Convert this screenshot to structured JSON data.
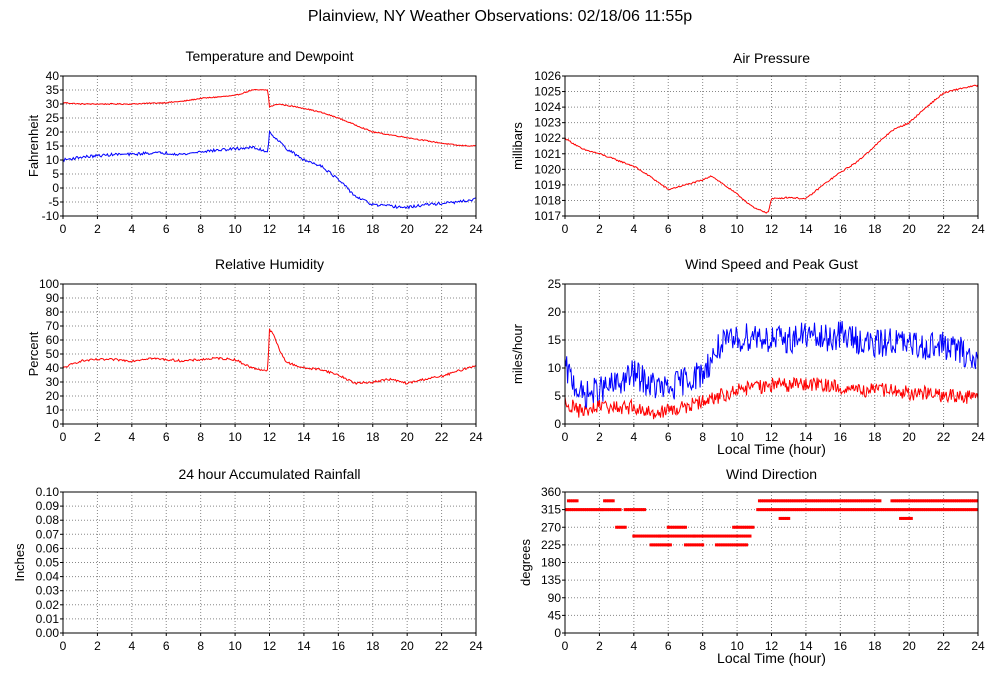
{
  "page_title": "Plainview, NY Weather Observations: 02/18/06 11:55p",
  "colors": {
    "red": "#ff0000",
    "blue": "#0000ff",
    "grid": "#888888",
    "frame": "#000000"
  },
  "chart_data": [
    {
      "id": "temp",
      "type": "line",
      "title": "Temperature and Dewpoint",
      "ylabel": "Fahrenheit",
      "xlabel": "",
      "xlim": [
        0,
        24
      ],
      "xticks": [
        0,
        2,
        4,
        6,
        8,
        10,
        12,
        14,
        16,
        18,
        20,
        22,
        24
      ],
      "ylim": [
        -10,
        40
      ],
      "yticks": [
        -10,
        -5,
        0,
        5,
        10,
        15,
        20,
        25,
        30,
        35,
        40
      ],
      "grid": true,
      "series": [
        {
          "color": "#ff0000",
          "noise": 0.2,
          "points": [
            [
              0,
              30.5
            ],
            [
              1,
              30
            ],
            [
              2,
              30
            ],
            [
              4,
              30
            ],
            [
              6,
              30.5
            ],
            [
              7,
              31
            ],
            [
              8,
              32
            ],
            [
              10,
              33
            ],
            [
              11,
              35
            ],
            [
              11.9,
              35
            ],
            [
              12,
              29
            ],
            [
              12.5,
              30
            ],
            [
              13,
              29.5
            ],
            [
              14,
              28.5
            ],
            [
              15,
              27
            ],
            [
              16,
              25
            ],
            [
              17,
              22.5
            ],
            [
              18,
              20
            ],
            [
              19,
              19
            ],
            [
              20,
              18
            ],
            [
              21,
              17
            ],
            [
              22,
              16
            ],
            [
              23,
              15.2
            ],
            [
              24,
              15
            ]
          ]
        },
        {
          "color": "#0000ff",
          "noise": 0.5,
          "points": [
            [
              0,
              10
            ],
            [
              1,
              11
            ],
            [
              2,
              11.5
            ],
            [
              3,
              12
            ],
            [
              4,
              12
            ],
            [
              5,
              12.5
            ],
            [
              6,
              12.5
            ],
            [
              7,
              12
            ],
            [
              8,
              13
            ],
            [
              9,
              13.5
            ],
            [
              10,
              14
            ],
            [
              11,
              14.5
            ],
            [
              11.9,
              13
            ],
            [
              12,
              20
            ],
            [
              12.5,
              17
            ],
            [
              13,
              14
            ],
            [
              14,
              10
            ],
            [
              15,
              8
            ],
            [
              16,
              3
            ],
            [
              16.5,
              0
            ],
            [
              17,
              -3
            ],
            [
              18,
              -6
            ],
            [
              19,
              -6.5
            ],
            [
              20,
              -7
            ],
            [
              21,
              -6
            ],
            [
              22,
              -5.5
            ],
            [
              23,
              -5
            ],
            [
              24,
              -4
            ]
          ]
        }
      ]
    },
    {
      "id": "pressure",
      "type": "line",
      "title": "Air Pressure",
      "ylabel": "millibars",
      "xlabel": "",
      "xlim": [
        0,
        24
      ],
      "xticks": [
        0,
        2,
        4,
        6,
        8,
        10,
        12,
        14,
        16,
        18,
        20,
        22,
        24
      ],
      "ylim": [
        1017,
        1026
      ],
      "yticks": [
        1017,
        1018,
        1019,
        1020,
        1021,
        1022,
        1023,
        1024,
        1025,
        1026
      ],
      "grid": true,
      "series": [
        {
          "color": "#ff0000",
          "noise": 0.05,
          "points": [
            [
              0,
              1022
            ],
            [
              1,
              1021.3
            ],
            [
              2,
              1021
            ],
            [
              3,
              1020.6
            ],
            [
              4,
              1020.2
            ],
            [
              5,
              1019.5
            ],
            [
              6,
              1018.7
            ],
            [
              7,
              1019
            ],
            [
              8,
              1019.3
            ],
            [
              8.5,
              1019.6
            ],
            [
              9,
              1019.2
            ],
            [
              10,
              1018.4
            ],
            [
              11,
              1017.5
            ],
            [
              11.8,
              1017.2
            ],
            [
              12,
              1018.1
            ],
            [
              13,
              1018.2
            ],
            [
              14,
              1018.1
            ],
            [
              15,
              1019
            ],
            [
              16,
              1019.8
            ],
            [
              17,
              1020.5
            ],
            [
              18,
              1021.5
            ],
            [
              19,
              1022.5
            ],
            [
              20,
              1023
            ],
            [
              21,
              1024
            ],
            [
              22,
              1024.9
            ],
            [
              23,
              1025.2
            ],
            [
              24,
              1025.4
            ]
          ]
        }
      ]
    },
    {
      "id": "humidity",
      "type": "line",
      "title": "Relative Humidity",
      "ylabel": "Percent",
      "xlabel": "",
      "xlim": [
        0,
        24
      ],
      "xticks": [
        0,
        2,
        4,
        6,
        8,
        10,
        12,
        14,
        16,
        18,
        20,
        22,
        24
      ],
      "ylim": [
        0,
        100
      ],
      "yticks": [
        0,
        10,
        20,
        30,
        40,
        50,
        60,
        70,
        80,
        90,
        100
      ],
      "grid": true,
      "series": [
        {
          "color": "#ff0000",
          "noise": 0.8,
          "points": [
            [
              0,
              40
            ],
            [
              1,
              45
            ],
            [
              2,
              46
            ],
            [
              3,
              46
            ],
            [
              4,
              45
            ],
            [
              5,
              47
            ],
            [
              6,
              46
            ],
            [
              7,
              45
            ],
            [
              8,
              46
            ],
            [
              9,
              47
            ],
            [
              10,
              46
            ],
            [
              11,
              40
            ],
            [
              11.9,
              38
            ],
            [
              12,
              68
            ],
            [
              12.3,
              62
            ],
            [
              12.6,
              52
            ],
            [
              13,
              44
            ],
            [
              14,
              40
            ],
            [
              15,
              39
            ],
            [
              16,
              35
            ],
            [
              17,
              29
            ],
            [
              18,
              30
            ],
            [
              19,
              32
            ],
            [
              20,
              29
            ],
            [
              21,
              32
            ],
            [
              22,
              34
            ],
            [
              23,
              38
            ],
            [
              24,
              42
            ]
          ]
        }
      ]
    },
    {
      "id": "wind",
      "type": "line",
      "title": "Wind Speed and Peak Gust",
      "ylabel": "miles/hour",
      "xlabel": "Local Time (hour)",
      "xlim": [
        0,
        24
      ],
      "xticks": [
        0,
        2,
        4,
        6,
        8,
        10,
        12,
        14,
        16,
        18,
        20,
        22,
        24
      ],
      "ylim": [
        0,
        25
      ],
      "yticks": [
        0,
        5,
        10,
        15,
        20,
        25
      ],
      "grid": true,
      "series": [
        {
          "color": "#0000ff",
          "noise": 2.6,
          "points": [
            [
              0,
              10
            ],
            [
              1,
              5
            ],
            [
              2,
              6
            ],
            [
              3,
              7
            ],
            [
              4,
              9
            ],
            [
              5,
              7
            ],
            [
              6,
              6
            ],
            [
              7,
              8
            ],
            [
              8,
              9
            ],
            [
              9,
              14
            ],
            [
              10,
              15
            ],
            [
              11,
              16
            ],
            [
              12,
              15
            ],
            [
              13,
              15
            ],
            [
              14,
              16
            ],
            [
              15,
              15
            ],
            [
              16,
              16
            ],
            [
              17,
              15
            ],
            [
              18,
              14
            ],
            [
              19,
              15
            ],
            [
              20,
              14
            ],
            [
              21,
              14
            ],
            [
              22,
              14
            ],
            [
              23,
              13
            ],
            [
              24,
              11
            ]
          ]
        },
        {
          "color": "#ff0000",
          "noise": 1.3,
          "points": [
            [
              0,
              4
            ],
            [
              1,
              2
            ],
            [
              2,
              3
            ],
            [
              3,
              3
            ],
            [
              4,
              3
            ],
            [
              5,
              2
            ],
            [
              6,
              2.5
            ],
            [
              7,
              3
            ],
            [
              8,
              4
            ],
            [
              9,
              5
            ],
            [
              10,
              6
            ],
            [
              11,
              6.5
            ],
            [
              12,
              7
            ],
            [
              13,
              7
            ],
            [
              14,
              7
            ],
            [
              15,
              7
            ],
            [
              16,
              6.5
            ],
            [
              17,
              6
            ],
            [
              18,
              6
            ],
            [
              19,
              6
            ],
            [
              20,
              5.5
            ],
            [
              21,
              5.5
            ],
            [
              22,
              5
            ],
            [
              23,
              5
            ],
            [
              24,
              4.5
            ]
          ]
        }
      ]
    },
    {
      "id": "rain",
      "type": "line",
      "title": "24 hour Accumulated Rainfall",
      "ylabel": "Inches",
      "xlabel": "",
      "xlim": [
        0,
        24
      ],
      "xticks": [
        0,
        2,
        4,
        6,
        8,
        10,
        12,
        14,
        16,
        18,
        20,
        22,
        24
      ],
      "ylim": [
        0,
        0.1
      ],
      "yticks": [
        0,
        0.01,
        0.02,
        0.03,
        0.04,
        0.05,
        0.06,
        0.07,
        0.08,
        0.09,
        0.1
      ],
      "ytick_labels": [
        "0.00",
        "0.01",
        "0.02",
        "0.03",
        "0.04",
        "0.05",
        "0.06",
        "0.07",
        "0.08",
        "0.09",
        "0.10"
      ],
      "grid": true,
      "series": [
        {
          "color": "#ff0000",
          "noise": 0,
          "points": [
            [
              0,
              0
            ],
            [
              24,
              0
            ]
          ]
        }
      ]
    },
    {
      "id": "direction",
      "type": "scatter",
      "title": "Wind Direction",
      "ylabel": "degrees",
      "xlabel": "Local Time (hour)",
      "xlim": [
        0,
        24
      ],
      "xticks": [
        0,
        2,
        4,
        6,
        8,
        10,
        12,
        14,
        16,
        18,
        20,
        22,
        24
      ],
      "ylim": [
        0,
        360
      ],
      "yticks": [
        0,
        45,
        90,
        135,
        180,
        225,
        270,
        315,
        360
      ],
      "grid": true,
      "series": [
        {
          "color": "#ff0000",
          "segments": [
            {
              "from": 0,
              "to": 2.2,
              "value": 315
            },
            {
              "from": 0.2,
              "to": 0.7,
              "value": 337.5
            },
            {
              "from": 2.2,
              "to": 3.2,
              "value": 315
            },
            {
              "from": 2.3,
              "to": 2.8,
              "value": 337.5
            },
            {
              "from": 3.0,
              "to": 3.5,
              "value": 270
            },
            {
              "from": 3.5,
              "to": 4.7,
              "value": 315
            },
            {
              "from": 4.0,
              "to": 5.5,
              "value": 247.5
            },
            {
              "from": 5.0,
              "to": 6.2,
              "value": 225
            },
            {
              "from": 5.5,
              "to": 7.5,
              "value": 247.5
            },
            {
              "from": 6.0,
              "to": 7.0,
              "value": 270
            },
            {
              "from": 7.0,
              "to": 8.0,
              "value": 225
            },
            {
              "from": 7.5,
              "to": 10.8,
              "value": 247.5
            },
            {
              "from": 8.8,
              "to": 10.6,
              "value": 225
            },
            {
              "from": 9.8,
              "to": 11.0,
              "value": 270
            },
            {
              "from": 11.2,
              "to": 24,
              "value": 315
            },
            {
              "from": 11.3,
              "to": 18.3,
              "value": 337.5
            },
            {
              "from": 19.0,
              "to": 24,
              "value": 337.5
            },
            {
              "from": 12.5,
              "to": 13.0,
              "value": 292.5
            },
            {
              "from": 19.5,
              "to": 20.2,
              "value": 292.5
            }
          ]
        }
      ]
    }
  ]
}
